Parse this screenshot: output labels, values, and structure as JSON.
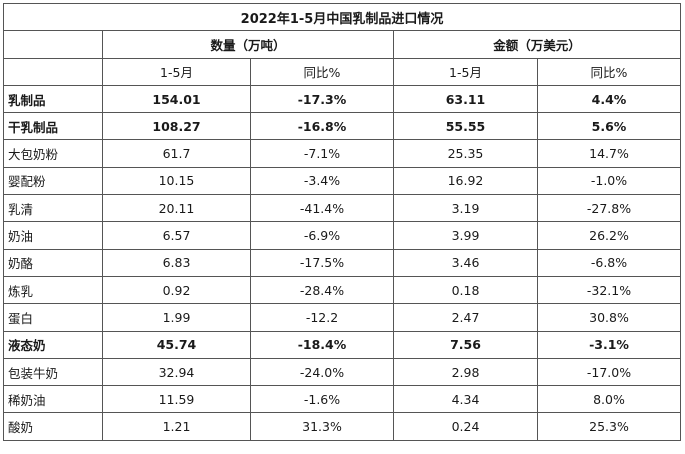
{
  "table": {
    "title": "2022年1-5月中国乳制品进口情况",
    "group_headers": {
      "quantity": "数量（万吨）",
      "amount": "金额（万美元）"
    },
    "sub_headers": {
      "q_period": "1-5月",
      "q_yoy": "同比%",
      "a_period": "1-5月",
      "a_yoy": "同比%"
    },
    "rows": [
      {
        "label": "乳制品",
        "q_val": "154.01",
        "q_yoy": "-17.3%",
        "a_val": "63.11",
        "a_yoy": "4.4%",
        "bold": true
      },
      {
        "label": "干乳制品",
        "q_val": "108.27",
        "q_yoy": "-16.8%",
        "a_val": "55.55",
        "a_yoy": "5.6%",
        "bold": true
      },
      {
        "label": "大包奶粉",
        "q_val": "61.7",
        "q_yoy": "-7.1%",
        "a_val": "25.35",
        "a_yoy": "14.7%",
        "bold": false
      },
      {
        "label": "婴配粉",
        "q_val": "10.15",
        "q_yoy": "-3.4%",
        "a_val": "16.92",
        "a_yoy": "-1.0%",
        "bold": false
      },
      {
        "label": "乳清",
        "q_val": "20.11",
        "q_yoy": "-41.4%",
        "a_val": "3.19",
        "a_yoy": "-27.8%",
        "bold": false
      },
      {
        "label": "奶油",
        "q_val": "6.57",
        "q_yoy": "-6.9%",
        "a_val": "3.99",
        "a_yoy": "26.2%",
        "bold": false
      },
      {
        "label": "奶酪",
        "q_val": "6.83",
        "q_yoy": "-17.5%",
        "a_val": "3.46",
        "a_yoy": "-6.8%",
        "bold": false
      },
      {
        "label": "炼乳",
        "q_val": "0.92",
        "q_yoy": "-28.4%",
        "a_val": "0.18",
        "a_yoy": "-32.1%",
        "bold": false
      },
      {
        "label": "蛋白",
        "q_val": "1.99",
        "q_yoy": "-12.2",
        "a_val": "2.47",
        "a_yoy": "30.8%",
        "bold": false
      },
      {
        "label": "液态奶",
        "q_val": "45.74",
        "q_yoy": "-18.4%",
        "a_val": "7.56",
        "a_yoy": "-3.1%",
        "bold": true
      },
      {
        "label": "包装牛奶",
        "q_val": "32.94",
        "q_yoy": "-24.0%",
        "a_val": "2.98",
        "a_yoy": "-17.0%",
        "bold": false
      },
      {
        "label": "稀奶油",
        "q_val": "11.59",
        "q_yoy": "-1.6%",
        "a_val": "4.34",
        "a_yoy": "8.0%",
        "bold": false
      },
      {
        "label": "酸奶",
        "q_val": "1.21",
        "q_yoy": "31.3%",
        "a_val": "0.24",
        "a_yoy": "25.3%",
        "bold": false
      }
    ]
  }
}
